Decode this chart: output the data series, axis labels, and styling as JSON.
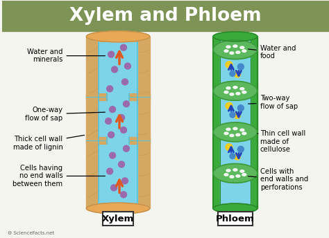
{
  "title": "Xylem and Phloem",
  "title_bg": "#7d9456",
  "title_color": "#ffffff",
  "bg_color": "#f5f5f0",
  "xylem_label": "Xylem",
  "phloem_label": "Phloem",
  "xylem_wood_color": "#d4a862",
  "xylem_wood_dark": "#c4904a",
  "xylem_top_color": "#e8a855",
  "xylem_inner_color": "#7dd4e8",
  "xylem_inner_dark": "#5bc0d8",
  "xylem_notch_color": "#7a9252",
  "xylem_dot_color": "#9b6aab",
  "xylem_arrow_color": "#e05a20",
  "phloem_outer_color": "#3aaa3a",
  "phloem_outer_dark": "#2a8a2a",
  "phloem_inner_color": "#7dd4e8",
  "phloem_cell_color": "#5cb85c",
  "phloem_cell_dark": "#3a9a3a",
  "phloem_dot_yellow": "#f0cc20",
  "phloem_dot_blue": "#4488cc",
  "phloem_arrow_color": "#2244bb",
  "label_border": "#333333",
  "sciencefacts_color": "#666666"
}
